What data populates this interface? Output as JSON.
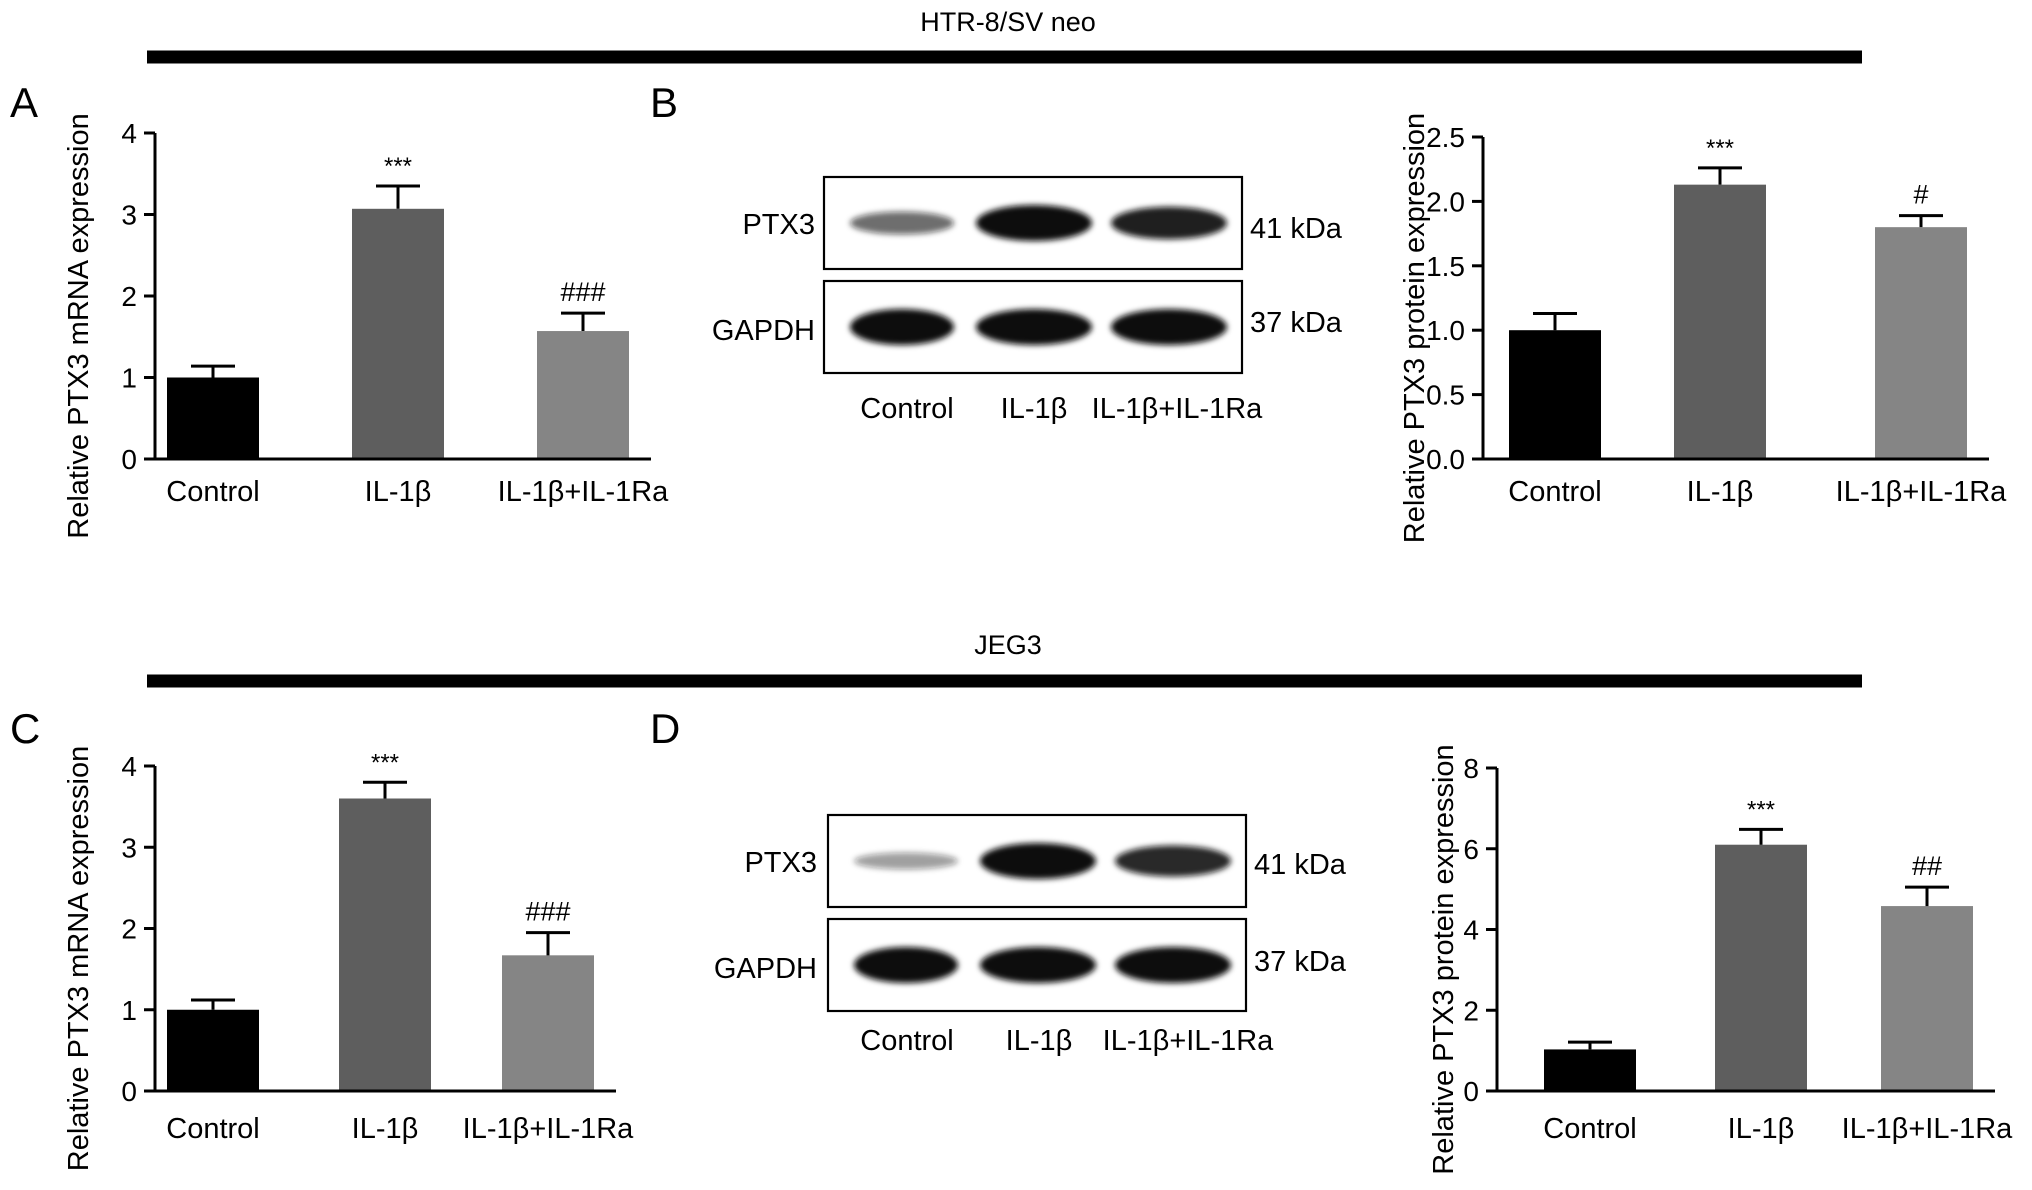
{
  "colors": {
    "control": "#000000",
    "il1b": "#5e5e5e",
    "il1b_il1ra": "#858585",
    "band": "#111111"
  },
  "sections": [
    {
      "title": "HTR-8/SV neo"
    },
    {
      "title": "JEG3"
    }
  ],
  "panel_labels": [
    "A",
    "B",
    "C",
    "D"
  ],
  "blots": [
    {
      "rows": [
        {
          "label": "PTX3",
          "kda": "41 kDa",
          "intensity": [
            0.45,
            1.0,
            0.85
          ]
        },
        {
          "label": "GAPDH",
          "kda": "37 kDa",
          "intensity": [
            1.0,
            1.0,
            1.0
          ]
        }
      ],
      "lanes": [
        "Control",
        "IL-1β",
        "IL-1β+IL-1Ra"
      ]
    },
    {
      "rows": [
        {
          "label": "PTX3",
          "kda": "41 kDa",
          "intensity": [
            0.2,
            1.0,
            0.8
          ]
        },
        {
          "label": "GAPDH",
          "kda": "37 kDa",
          "intensity": [
            1.0,
            1.0,
            1.0
          ]
        }
      ],
      "lanes": [
        "Control",
        "IL-1β",
        "IL-1β+IL-1Ra"
      ]
    }
  ],
  "chart_data": [
    {
      "panel": "A",
      "type": "bar",
      "categories": [
        "Control",
        "IL-1β",
        "IL-1β+IL-1Ra"
      ],
      "values": [
        1.0,
        3.07,
        1.57
      ],
      "errors": [
        0.14,
        0.28,
        0.22
      ],
      "annotations": [
        "",
        "***",
        "###"
      ],
      "ylabel": "Relative PTX3 mRNA expression",
      "ylim": [
        0,
        4
      ],
      "yticks": [
        "0",
        "1",
        "2",
        "3",
        "4"
      ]
    },
    {
      "panel": "B",
      "type": "bar",
      "categories": [
        "Control",
        "IL-1β",
        "IL-1β+IL-1Ra"
      ],
      "values": [
        1.0,
        2.13,
        1.8
      ],
      "errors": [
        0.13,
        0.13,
        0.09
      ],
      "annotations": [
        "",
        "***",
        "#"
      ],
      "ylabel": "Relative PTX3 protein expression",
      "ylim": [
        0,
        2.5
      ],
      "yticks": [
        "0.0",
        "0.5",
        "1.0",
        "1.5",
        "2.0",
        "2.5"
      ]
    },
    {
      "panel": "C",
      "type": "bar",
      "categories": [
        "Control",
        "IL-1β",
        "IL-1β+IL-1Ra"
      ],
      "values": [
        1.0,
        3.6,
        1.67
      ],
      "errors": [
        0.12,
        0.2,
        0.28
      ],
      "annotations": [
        "",
        "***",
        "###"
      ],
      "ylabel": "Relative PTX3 mRNA expression",
      "ylim": [
        0,
        4
      ],
      "yticks": [
        "0",
        "1",
        "2",
        "3",
        "4"
      ]
    },
    {
      "panel": "D",
      "type": "bar",
      "categories": [
        "Control",
        "IL-1β",
        "IL-1β+IL-1Ra"
      ],
      "values": [
        1.03,
        6.1,
        4.58
      ],
      "errors": [
        0.18,
        0.38,
        0.47
      ],
      "annotations": [
        "",
        "***",
        "##"
      ],
      "ylabel": "Relative PTX3 protein expression",
      "ylim": [
        0,
        8
      ],
      "yticks": [
        "0",
        "2",
        "4",
        "6",
        "8"
      ]
    }
  ]
}
